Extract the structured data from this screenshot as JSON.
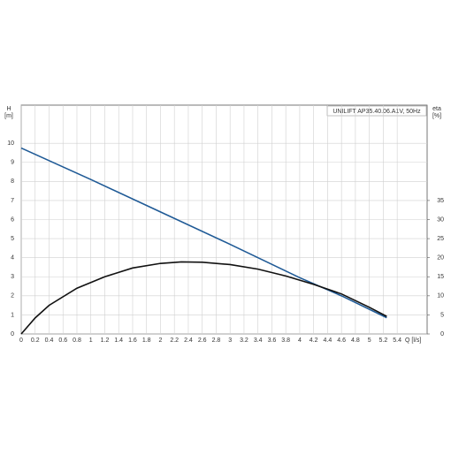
{
  "chart_data": {
    "type": "line",
    "legend_text": "UNILIFT AP35.40.06.A1V, 50Hz",
    "y_label": "H",
    "y_unit": "[m]",
    "y2_label": "eta",
    "y2_unit": "[%]",
    "x_label": "Q [l/s]",
    "xlim": [
      0,
      5.83
    ],
    "ylim": [
      0,
      12
    ],
    "y2lim": [
      0,
      60
    ],
    "xticks": [
      0,
      0.2,
      0.4,
      0.6,
      0.8,
      1,
      1.2,
      1.4,
      1.6,
      1.8,
      2,
      2.2,
      2.4,
      2.6,
      2.8,
      3,
      3.2,
      3.4,
      3.6,
      3.8,
      4,
      4.2,
      4.4,
      4.6,
      4.8,
      5,
      5.2,
      5.4
    ],
    "yticks": [
      0,
      1,
      2,
      3,
      4,
      5,
      6,
      7,
      8,
      9,
      10
    ],
    "y2ticks": [
      0,
      5,
      10,
      15,
      20,
      25,
      30,
      35
    ],
    "grid": true,
    "series": [
      {
        "name": "H",
        "color": "#1f5a96",
        "axis": "y",
        "x": [
          0,
          1,
          2,
          3,
          4,
          4.6,
          5.25
        ],
        "values": [
          9.75,
          8.1,
          6.4,
          4.7,
          2.95,
          2.0,
          0.85
        ]
      },
      {
        "name": "eta",
        "color": "#111111",
        "axis": "y2",
        "x": [
          0,
          0.2,
          0.4,
          0.8,
          1.2,
          1.6,
          2.0,
          2.3,
          2.6,
          3.0,
          3.4,
          3.8,
          4.2,
          4.6,
          5.0,
          5.25
        ],
        "values": [
          0,
          4.2,
          7.5,
          12,
          15,
          17.3,
          18.5,
          18.9,
          18.8,
          18.2,
          17,
          15.2,
          13,
          10.5,
          7,
          4.6
        ]
      }
    ]
  }
}
